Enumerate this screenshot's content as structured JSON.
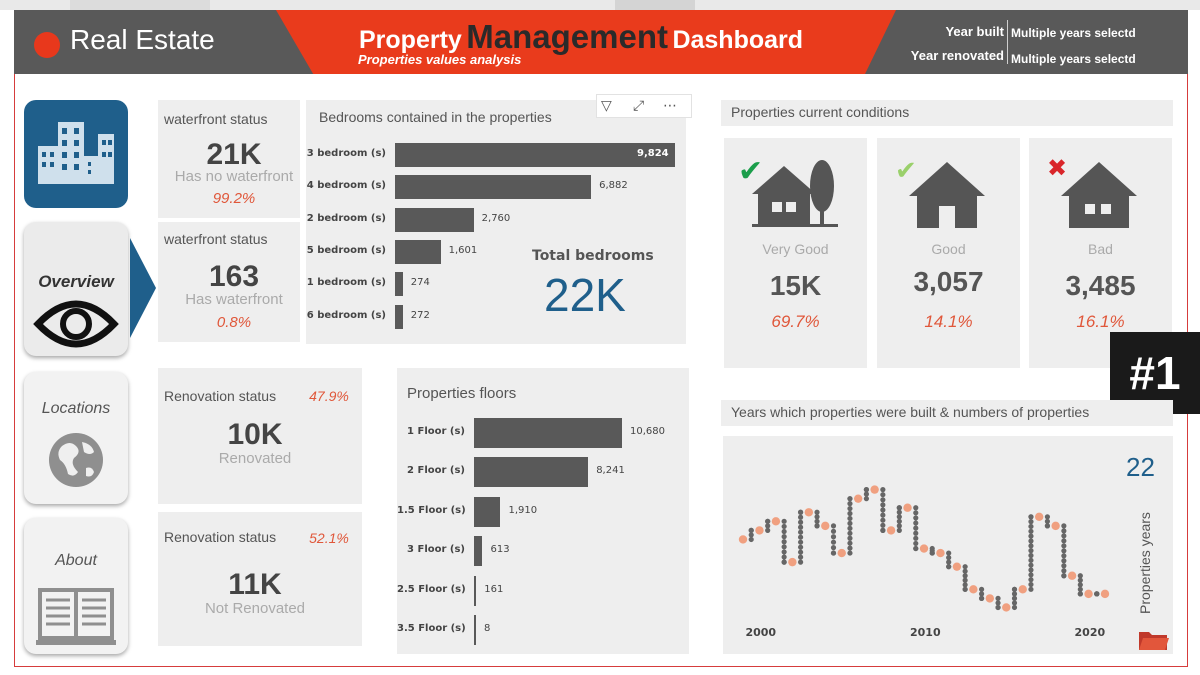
{
  "header": {
    "brand": "Real Estate",
    "title_part1": "Property",
    "title_part2": "Management",
    "title_part3": "Dashboard",
    "subtitle": "Properties values analysis",
    "filters": [
      {
        "label": "Year built",
        "value": "Multiple years selectd"
      },
      {
        "label": "Year renovated",
        "value": "Multiple years selectd"
      }
    ],
    "colors": {
      "bar": "#595959",
      "accent": "#e93b1c",
      "brand_blue": "#1f5f8b"
    }
  },
  "nav": {
    "home_icon": "buildings-icon",
    "items": [
      {
        "label": "Overview",
        "icon": "eye-icon",
        "active": true
      },
      {
        "label": "Locations",
        "icon": "globe-icon",
        "active": false
      },
      {
        "label": "About",
        "icon": "book-icon",
        "active": false
      }
    ]
  },
  "waterfront": [
    {
      "title": "waterfront status",
      "value": "21K",
      "desc": "Has no waterfront",
      "pct": "99.2%"
    },
    {
      "title": "waterfront status",
      "value": "163",
      "desc": "Has waterfront",
      "pct": "0.8%"
    }
  ],
  "renovation": [
    {
      "title": "Renovation status",
      "pct": "47.9%",
      "value": "10K",
      "desc": "Renovated"
    },
    {
      "title": "Renovation status",
      "pct": "52.1%",
      "value": "11K",
      "desc": "Not Renovated"
    }
  ],
  "bedrooms": {
    "title": "Bedrooms contained in the properties",
    "total_label": "Total bedrooms",
    "total_value": "22K",
    "toolbar": [
      "filter-icon",
      "focus-mode-icon",
      "more-options-icon"
    ]
  },
  "floors": {
    "title": "Properties floors"
  },
  "conditions": {
    "title": "Properties current conditions",
    "items": [
      {
        "label": "Very Good",
        "value": "15K",
        "pct": "69.7%",
        "mark": "✔",
        "mark_color": "#1b9e4b",
        "icon": "house-tree-icon"
      },
      {
        "label": "Good",
        "value": "3,057",
        "pct": "14.1%",
        "mark": "✔",
        "mark_color": "#9ad06b",
        "icon": "house-icon"
      },
      {
        "label": "Bad",
        "value": "3,485",
        "pct": "16.1%",
        "mark": "✖",
        "mark_color": "#d9252a",
        "icon": "house-icon"
      }
    ]
  },
  "years": {
    "title": "Years which properties were built & numbers of properties",
    "count": "22",
    "count_label": "Properties years"
  },
  "badge": "#1",
  "chart_data": [
    {
      "type": "bar",
      "orientation": "horizontal",
      "title": "Bedrooms contained in the properties",
      "categories": [
        "3 bedroom (s)",
        "4 bedroom (s)",
        "2 bedroom (s)",
        "5 bedroom (s)",
        "1 bedroom (s)",
        "6 bedroom (s)"
      ],
      "values": [
        9824,
        6882,
        2760,
        1601,
        274,
        272
      ],
      "labels": [
        "9,824",
        "6,882",
        "2,760",
        "1,601",
        "274",
        "272"
      ]
    },
    {
      "type": "bar",
      "orientation": "horizontal",
      "title": "Properties floors",
      "categories": [
        "1 Floor (s)",
        "2 Floor (s)",
        "1.5 Floor (s)",
        "3 Floor (s)",
        "2.5 Floor (s)",
        "3.5 Floor (s)"
      ],
      "values": [
        10680,
        8241,
        1910,
        613,
        161,
        8
      ],
      "labels": [
        "10,680",
        "8,241",
        "1,910",
        "613",
        "161",
        "8"
      ]
    },
    {
      "type": "line",
      "title": "Years which properties were built & numbers of properties",
      "xticks": [
        "2000",
        "2010",
        "2020"
      ],
      "xlim": [
        1999,
        2021
      ],
      "x": [
        1999,
        2000,
        2001,
        2002,
        2003,
        2004,
        2005,
        2006,
        2007,
        2008,
        2009,
        2010,
        2011,
        2012,
        2013,
        2014,
        2015,
        2016,
        2017,
        2018,
        2019,
        2020,
        2021
      ],
      "y": [
        0.3,
        0.4,
        0.5,
        0.05,
        0.6,
        0.45,
        0.15,
        0.75,
        0.85,
        0.4,
        0.65,
        0.2,
        0.15,
        0.0,
        -0.25,
        -0.35,
        -0.45,
        -0.25,
        0.55,
        0.45,
        -0.1,
        -0.3,
        -0.3
      ]
    }
  ]
}
